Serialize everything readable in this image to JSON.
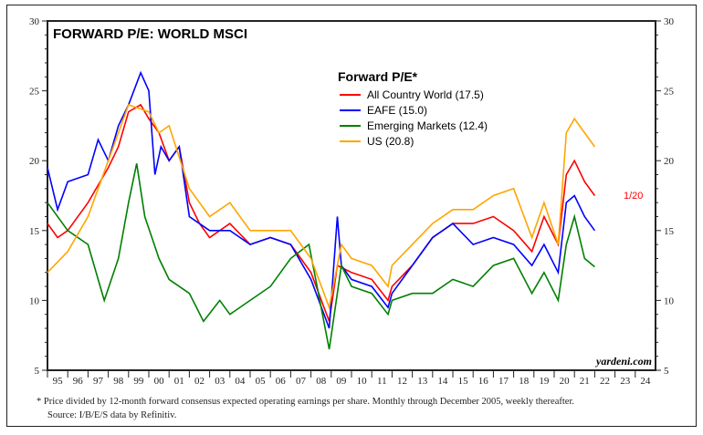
{
  "chart_data": {
    "type": "line",
    "title": "FORWARD P/E: WORLD MSCI",
    "legend_title": "Forward P/E*",
    "legend_placement": "top-center",
    "xlim": [
      1995,
      2025
    ],
    "ylim": [
      5,
      30
    ],
    "yticks": [
      5,
      10,
      15,
      20,
      25,
      30
    ],
    "xtick_labels": [
      "95",
      "96",
      "97",
      "98",
      "99",
      "00",
      "01",
      "02",
      "03",
      "04",
      "05",
      "06",
      "07",
      "08",
      "09",
      "10",
      "11",
      "12",
      "13",
      "14",
      "15",
      "16",
      "17",
      "18",
      "19",
      "20",
      "21",
      "22",
      "23",
      "24"
    ],
    "grid": false,
    "annotation": "1/20",
    "watermark": "yardeni.com",
    "footnote": "*  Price divided by 12-month forward consensus expected operating earnings per share. Monthly through December 2005, weekly thereafter.",
    "source": "Source: I/B/E/S data by Refinitiv.",
    "series": [
      {
        "name": "All Country World (17.5)",
        "color": "#ff0000",
        "x": [
          1995,
          1995.5,
          1996,
          1997,
          1998,
          1998.5,
          1999,
          1999.6,
          2000,
          2000.5,
          2001,
          2001.5,
          2002,
          2002.5,
          2003,
          2004,
          2005,
          2006,
          2007,
          2008,
          2008.9,
          2009.3,
          2010,
          2011,
          2011.8,
          2012,
          2013,
          2014,
          2015,
          2016,
          2017,
          2018,
          2018.9,
          2019.5,
          2020.2,
          2020.6,
          2021,
          2021.5,
          2022
        ],
        "y": [
          15.5,
          14.5,
          15,
          17,
          19.5,
          21,
          23.5,
          24,
          23,
          22,
          20,
          21,
          17,
          15.5,
          14.5,
          15.5,
          14,
          14.5,
          14,
          12,
          8.5,
          12.5,
          12,
          11.5,
          10,
          11,
          12.5,
          14.5,
          15.5,
          15.5,
          16,
          15,
          13.5,
          16,
          14,
          19,
          20,
          18.5,
          17.5
        ]
      },
      {
        "name": "EAFE (15.0)",
        "color": "#0000ff",
        "x": [
          1995,
          1995.5,
          1996,
          1997,
          1997.5,
          1998,
          1998.5,
          1999,
          1999.6,
          2000,
          2000.3,
          2000.6,
          2001,
          2001.5,
          2002,
          2003,
          2004,
          2005,
          2006,
          2007,
          2008,
          2008.9,
          2009.3,
          2009.5,
          2010,
          2011,
          2011.8,
          2012,
          2013,
          2014,
          2015,
          2016,
          2017,
          2018,
          2018.9,
          2019.5,
          2020.2,
          2020.6,
          2021,
          2021.5,
          2022
        ],
        "y": [
          19.5,
          16.5,
          18.5,
          19,
          21.5,
          20,
          22.5,
          24,
          26.3,
          25,
          19,
          21,
          20,
          21,
          16,
          15,
          15,
          14,
          14.5,
          14,
          11.5,
          8,
          16,
          12.5,
          11.5,
          11,
          9.5,
          10.5,
          12.5,
          14.5,
          15.5,
          14,
          14.5,
          14,
          12.5,
          14,
          12,
          17,
          17.5,
          16,
          15
        ]
      },
      {
        "name": "Emerging Markets (12.4)",
        "color": "#008000",
        "x": [
          1995,
          1996,
          1997,
          1997.8,
          1998.5,
          1999,
          1999.4,
          1999.8,
          2000.5,
          2001,
          2002,
          2002.7,
          2003.5,
          2004,
          2005,
          2006,
          2007,
          2007.9,
          2008.9,
          2009.5,
          2010,
          2011,
          2011.8,
          2012,
          2013,
          2014,
          2015,
          2016,
          2017,
          2018,
          2018.9,
          2019.5,
          2020.2,
          2020.6,
          2021,
          2021.5,
          2022
        ],
        "y": [
          17,
          15,
          14,
          10,
          13,
          17,
          19.8,
          16,
          13,
          11.5,
          10.5,
          8.5,
          10,
          9,
          10,
          11,
          13,
          14,
          6.5,
          12.5,
          11,
          10.5,
          9,
          10,
          10.5,
          10.5,
          11.5,
          11,
          12.5,
          13,
          10.5,
          12,
          10,
          14,
          16,
          13,
          12.4
        ]
      },
      {
        "name": "US (20.8)",
        "color": "#ffa500",
        "x": [
          1995,
          1996,
          1997,
          1998,
          1999,
          2000,
          2000.5,
          2001,
          2002,
          2003,
          2004,
          2005,
          2006,
          2007,
          2008,
          2008.9,
          2009.5,
          2010,
          2011,
          2011.8,
          2012,
          2013,
          2014,
          2015,
          2016,
          2017,
          2018,
          2018.9,
          2019.5,
          2020.2,
          2020.6,
          2021,
          2021.5,
          2022
        ],
        "y": [
          12,
          13.5,
          16,
          20,
          24,
          23.5,
          22,
          22.5,
          18,
          16,
          17,
          15,
          15,
          15,
          13,
          9.5,
          14,
          13,
          12.5,
          11,
          12.5,
          14,
          15.5,
          16.5,
          16.5,
          17.5,
          18,
          14.5,
          17,
          14,
          22,
          23,
          22,
          21
        ]
      }
    ]
  }
}
